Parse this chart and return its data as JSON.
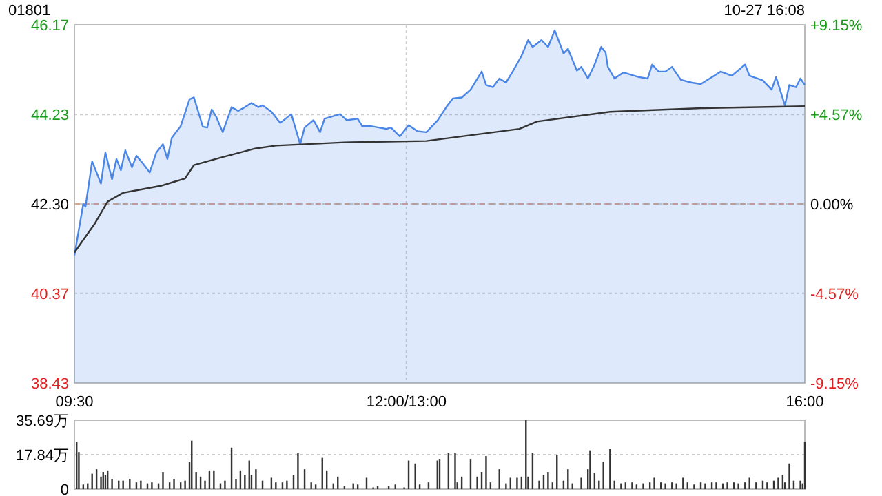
{
  "chart_data": [
    {
      "type": "line",
      "title": "01801",
      "subtitle": "10-27 16:08",
      "categories": [
        "09:30",
        null,
        null,
        null,
        null,
        null,
        null,
        null,
        null,
        null,
        null,
        null,
        null,
        null,
        null,
        null,
        null,
        null,
        null,
        null,
        null,
        null,
        null,
        null,
        null,
        null,
        null,
        null,
        null,
        null,
        null,
        null,
        null,
        null,
        null,
        null,
        null,
        null,
        null,
        null,
        null,
        null,
        null,
        null,
        null,
        null,
        null,
        null,
        null,
        null,
        null,
        null,
        null,
        null,
        null,
        null,
        null,
        null,
        null,
        null,
        null,
        null,
        null,
        null,
        null,
        null,
        null,
        null,
        null,
        null,
        null,
        null,
        null,
        null,
        null,
        null,
        null,
        null,
        null,
        null,
        null,
        null,
        null,
        null,
        null,
        null,
        null,
        null,
        null,
        null,
        null,
        null,
        null,
        null,
        null,
        null,
        null,
        null,
        null,
        null,
        null,
        null,
        null,
        null,
        null,
        null,
        null,
        null,
        null,
        null,
        null,
        null,
        null,
        null,
        null,
        null,
        null,
        null,
        null,
        null,
        null,
        null,
        null,
        null,
        null,
        null,
        null,
        null,
        null,
        null,
        null,
        null,
        null,
        null,
        null,
        null,
        null,
        null,
        null,
        null,
        null,
        null,
        null,
        null,
        null,
        null,
        null,
        null,
        null,
        null,
        "12:00/13:00",
        null,
        null,
        null,
        null,
        null,
        null,
        null,
        null,
        null,
        null,
        null,
        null,
        null,
        null,
        null,
        null,
        null,
        null,
        null,
        null,
        null,
        null,
        null,
        null,
        null,
        null,
        null,
        null,
        null,
        null,
        null,
        null,
        null,
        null,
        null,
        null,
        null,
        null,
        null,
        null,
        null,
        null,
        null,
        null,
        null,
        null,
        null,
        null,
        null,
        null,
        null,
        null,
        null,
        null,
        null,
        null,
        null,
        null,
        null,
        null,
        null,
        null,
        null,
        null,
        null,
        null,
        null,
        null,
        null,
        null,
        null,
        null,
        null,
        null,
        null,
        null,
        null,
        null,
        null,
        null,
        null,
        null,
        null,
        null,
        null,
        null,
        null,
        null,
        null,
        null,
        null,
        null,
        null,
        null,
        null,
        null,
        null,
        null,
        null,
        null,
        null,
        null,
        null,
        null,
        null,
        null,
        null,
        null,
        null,
        null,
        null,
        null,
        null,
        null,
        null,
        null,
        null,
        null,
        null,
        null,
        null,
        null,
        null,
        null,
        null,
        null,
        null,
        null,
        null,
        null,
        null,
        null,
        null,
        null,
        null,
        null,
        null,
        null,
        null,
        null,
        null,
        null,
        null,
        null,
        null,
        null,
        null,
        null,
        null,
        null,
        null,
        null,
        null,
        null,
        null,
        null,
        null,
        null,
        null,
        null,
        null,
        null,
        null,
        null,
        null,
        null,
        null,
        null,
        null,
        null,
        null,
        null,
        null,
        null,
        null,
        null,
        null,
        null,
        null,
        "16:00"
      ],
      "ylim": [
        38.43,
        46.17
      ],
      "yticks": [
        38.43,
        40.37,
        {
          "value": 42.3,
          "label": "42.30"
        },
        44.23,
        46.17
      ],
      "y2lim": [
        -9.15,
        9.15
      ],
      "y2ticks": [
        {
          "value": -9.15,
          "label": "-9.15%"
        },
        {
          "value": -4.57,
          "label": "-4.57%"
        },
        {
          "value": 0,
          "label": "0.00%"
        },
        {
          "value": 4.57,
          "label": "+4.57%"
        },
        {
          "value": 9.15,
          "label": "+9.15%"
        }
      ],
      "grid": true,
      "ref_lines": [
        {
          "axis": "y",
          "value": 42.3,
          "color": "#e0a080",
          "line_style": "dashed"
        }
      ],
      "series": [
        {
          "type": "area",
          "color": "#4a86e8",
          "values": [
            41.19,
            null,
            null,
            null,
            42.3,
            42.24,
            null,
            null,
            43.22,
            null,
            null,
            null,
            42.74,
            null,
            43.41,
            null,
            null,
            42.83,
            null,
            43.27,
            null,
            43.03,
            null,
            43.46,
            null,
            null,
            43.09,
            null,
            43.34,
            null,
            null,
            43.17,
            null,
            null,
            42.98,
            null,
            null,
            43.41,
            null,
            null,
            43.59,
            null,
            43.27,
            null,
            43.73,
            null,
            null,
            null,
            43.98,
            null,
            null,
            null,
            44.56,
            null,
            44.6,
            null,
            null,
            null,
            43.97,
            null,
            43.95,
            null,
            44.34,
            null,
            44.19,
            null,
            null,
            43.85,
            null,
            null,
            null,
            44.39,
            null,
            null,
            44.31,
            null,
            null,
            44.39,
            null,
            null,
            44.48,
            null,
            null,
            44.39,
            null,
            44.43,
            null,
            null,
            null,
            44.29,
            null,
            null,
            null,
            44.05,
            null,
            null,
            null,
            null,
            44.24,
            null,
            null,
            null,
            43.59,
            null,
            43.95,
            null,
            null,
            null,
            44.11,
            null,
            null,
            43.85,
            null,
            44.14,
            null,
            null,
            null,
            null,
            null,
            null,
            44.24,
            null,
            null,
            44.11,
            null,
            null,
            null,
            null,
            44.14,
            null,
            43.98,
            null,
            null,
            null,
            43.98,
            null,
            null,
            null,
            null,
            null,
            null,
            43.92,
            null,
            43.95,
            null,
            null,
            null,
            43.76,
            null,
            null,
            null,
            44.0,
            null,
            null,
            null,
            43.87,
            null,
            null,
            null,
            43.85,
            null,
            null,
            null,
            null,
            44.1,
            null,
            null,
            null,
            44.39,
            null,
            null,
            44.58,
            null,
            null,
            null,
            44.6,
            null,
            null,
            null,
            44.77,
            null,
            null,
            null,
            null,
            45.16,
            null,
            44.87,
            null,
            null,
            44.82,
            null,
            null,
            45.01,
            null,
            null,
            44.92,
            null,
            null,
            45.16,
            null,
            null,
            null,
            45.5,
            null,
            null,
            45.84,
            null,
            45.69,
            null,
            null,
            null,
            45.84,
            null,
            null,
            45.69,
            null,
            null,
            46.05,
            null,
            null,
            null,
            45.55,
            null,
            45.65,
            null,
            null,
            null,
            45.18,
            null,
            45.26,
            null,
            null,
            45.01,
            null,
            null,
            45.31,
            null,
            null,
            45.69,
            null,
            45.57,
            45.26,
            null,
            null,
            45.01,
            null,
            null,
            null,
            45.14,
            null,
            null,
            null,
            null,
            null,
            null,
            45.04,
            null,
            null,
            null,
            45.01,
            null,
            45.31,
            null,
            null,
            45.16,
            null,
            null,
            45.16,
            null,
            null,
            45.26,
            null,
            null,
            null,
            44.98,
            null,
            null,
            null,
            null,
            44.92,
            null,
            null,
            null,
            44.89,
            null,
            null,
            null,
            null,
            null,
            45.07,
            null,
            null,
            45.16,
            null,
            null,
            null,
            null,
            45.07,
            null,
            null,
            null,
            null,
            null,
            45.31,
            null,
            45.07,
            null,
            null,
            null,
            null,
            null,
            44.97,
            null,
            null,
            null,
            44.77,
            null,
            45.04,
            null,
            null,
            null,
            44.43,
            null,
            44.87,
            null,
            null,
            44.82,
            null,
            45.01,
            null,
            44.87
          ]
        },
        {
          "type": "line",
          "color": "#333333",
          "values": [
            41.25,
            null,
            null,
            null,
            null,
            null,
            null,
            null,
            null,
            41.86,
            null,
            null,
            null,
            null,
            null,
            42.35,
            null,
            null,
            null,
            null,
            null,
            null,
            42.54,
            null,
            null,
            null,
            null,
            null,
            null,
            null,
            null,
            42.62,
            null,
            null,
            null,
            null,
            null,
            null,
            null,
            42.69,
            null,
            null,
            null,
            null,
            null,
            null,
            null,
            null,
            null,
            null,
            42.85,
            null,
            null,
            null,
            43.14,
            null,
            null,
            null,
            null,
            null,
            null,
            null,
            null,
            null,
            null,
            null,
            43.3,
            null,
            null,
            null,
            null,
            null,
            null,
            null,
            null,
            null,
            null,
            null,
            null,
            null,
            null,
            43.49,
            null,
            null,
            null,
            null,
            null,
            null,
            null,
            null,
            null,
            43.56,
            null,
            null,
            null,
            null,
            null,
            null,
            null,
            null,
            null,
            null,
            null,
            null,
            null,
            null,
            null,
            null,
            null,
            null,
            null,
            null,
            null,
            null,
            null,
            null,
            null,
            null,
            null,
            null,
            null,
            null,
            43.63,
            null,
            null,
            null,
            null,
            null,
            null,
            null,
            null,
            null,
            null,
            null,
            null,
            null,
            null,
            null,
            null,
            null,
            null,
            null,
            null,
            null,
            null,
            null,
            null,
            null,
            null,
            null,
            null,
            null,
            null,
            null,
            null,
            null,
            null,
            null,
            null,
            43.66,
            null,
            null,
            null,
            null,
            null,
            null,
            null,
            null,
            null,
            null,
            null,
            null,
            null,
            null,
            null,
            null,
            null,
            null,
            null,
            null,
            43.79,
            null,
            null,
            null,
            null,
            null,
            null,
            null,
            null,
            null,
            null,
            null,
            null,
            null,
            null,
            null,
            null,
            null,
            null,
            null,
            null,
            43.92,
            null,
            null,
            null,
            null,
            null,
            null,
            null,
            44.08,
            null,
            null,
            null,
            null,
            null,
            null,
            null,
            null,
            null,
            null,
            null,
            null,
            null,
            null,
            null,
            null,
            null,
            null,
            null,
            null,
            null,
            null,
            null,
            null,
            null,
            null,
            null,
            null,
            null,
            null,
            null,
            null,
            44.29,
            null,
            null,
            null,
            null,
            null,
            null,
            null,
            null,
            null,
            null,
            null,
            null,
            null,
            null,
            null,
            null,
            null,
            null,
            null,
            null,
            null,
            null,
            null,
            null,
            null,
            null,
            null,
            null,
            null,
            null,
            null,
            null,
            null,
            null,
            null,
            null,
            null,
            null,
            null,
            null,
            null,
            44.37,
            null,
            null,
            null,
            null,
            null,
            null,
            null,
            null,
            null,
            null,
            null,
            null,
            null,
            null,
            null,
            null,
            null,
            null,
            null,
            null,
            null,
            null,
            null,
            null,
            null,
            null,
            null,
            null,
            null,
            null,
            null,
            null,
            null,
            null,
            null,
            null,
            null,
            null,
            null,
            null,
            null,
            null,
            null,
            null,
            null,
            44.41
          ]
        }
      ]
    },
    {
      "type": "bar",
      "color": "#333333",
      "tick_labels": "y",
      "grid": "y",
      "categories": [
        null,
        null,
        null,
        null,
        null,
        null,
        null,
        null,
        null,
        null,
        null,
        null,
        null,
        null,
        null,
        null,
        null,
        null,
        null,
        null,
        null,
        null,
        null,
        null,
        null,
        null,
        null,
        null,
        null,
        null,
        null,
        null,
        null,
        null,
        null,
        null,
        null,
        null,
        null,
        null,
        null,
        null,
        null,
        null,
        null,
        null,
        null,
        null,
        null,
        null,
        null,
        null,
        null,
        null,
        null,
        null,
        null,
        null,
        null,
        null,
        null,
        null,
        null,
        null,
        null,
        null,
        null,
        null,
        null,
        null,
        null,
        null,
        null,
        null,
        null,
        null,
        null,
        null,
        null,
        null,
        null,
        null,
        null,
        null,
        null,
        null,
        null,
        null,
        null,
        null,
        null,
        null,
        null,
        null,
        null,
        null,
        null,
        null,
        null,
        null,
        null,
        null,
        null,
        null,
        null,
        null,
        null,
        null,
        null,
        null,
        null,
        null,
        null,
        null,
        null,
        null,
        null,
        null,
        null,
        null,
        null,
        null,
        null,
        null,
        null,
        null,
        null,
        null,
        null,
        null,
        null,
        null,
        null,
        null,
        null,
        null,
        null,
        null,
        null,
        null,
        null,
        null,
        null,
        null,
        null,
        null,
        null,
        null,
        null,
        null,
        null,
        null,
        null,
        null,
        null,
        null,
        null,
        null,
        null,
        null,
        null,
        null,
        null,
        null,
        null,
        null,
        null,
        null,
        null,
        null,
        null,
        null,
        null,
        null,
        null,
        null,
        null,
        null,
        null,
        null,
        null,
        null,
        null,
        null,
        null,
        null,
        null,
        null,
        null,
        null,
        null,
        null,
        null,
        null,
        null,
        null,
        null,
        null,
        null,
        null,
        null,
        null,
        null,
        null,
        null,
        null,
        null,
        null,
        null,
        null,
        null,
        null,
        null,
        null,
        null,
        null,
        null,
        null,
        null,
        null,
        null,
        null,
        null,
        null,
        null,
        null,
        null,
        null,
        null,
        null,
        null,
        null,
        null,
        null,
        null,
        null,
        null,
        null,
        null,
        null,
        null,
        null,
        null,
        null,
        null,
        null,
        null,
        null,
        null,
        null,
        null,
        null,
        null,
        null,
        null,
        null,
        null,
        null,
        null,
        null,
        null,
        null,
        null,
        null,
        null,
        null,
        null,
        null,
        null,
        null,
        null,
        null,
        null,
        null,
        null,
        null,
        null,
        null,
        null,
        null,
        null,
        null,
        null,
        null,
        null,
        null,
        null,
        null,
        null,
        null,
        null,
        null,
        null,
        null,
        null,
        null,
        null,
        null,
        null,
        null,
        null,
        null,
        null,
        null,
        null,
        null,
        null,
        null,
        null,
        null,
        null,
        null,
        null,
        null,
        null,
        null,
        null,
        null,
        null,
        null,
        null,
        null,
        null,
        null,
        null,
        null,
        null,
        null,
        null,
        null,
        null
      ],
      "ylim": [
        0,
        35.69
      ],
      "yticks": [
        0,
        {
          "value": 17.84,
          "label": "17.84万"
        },
        {
          "value": 35.69,
          "label": "35.69万"
        }
      ],
      "values": [
        null,
        24.5,
        19.2,
        null,
        2.4,
        null,
        3.0,
        null,
        8.0,
        null,
        10.3,
        null,
        6.5,
        8.9,
        7.4,
        9.7,
        null,
        5.3,
        null,
        null,
        4.4,
        null,
        4.4,
        null,
        null,
        5.3,
        null,
        null,
        3.5,
        null,
        4.4,
        null,
        null,
        3.0,
        null,
        3.5,
        null,
        null,
        3.0,
        null,
        8.9,
        null,
        null,
        3.5,
        null,
        5.3,
        null,
        null,
        3.5,
        null,
        4.4,
        null,
        14.2,
        25.1,
        null,
        8.9,
        null,
        6.5,
        null,
        4.4,
        null,
        9.7,
        null,
        9.7,
        null,
        null,
        3.0,
        null,
        4.4,
        null,
        null,
        21.5,
        null,
        5.3,
        null,
        9.7,
        null,
        7.4,
        null,
        14.8,
        7.4,
        null,
        10.3,
        null,
        null,
        4.4,
        null,
        null,
        null,
        5.9,
        null,
        3.5,
        null,
        null,
        3.5,
        null,
        4.4,
        null,
        null,
        7.4,
        null,
        18.6,
        null,
        null,
        10.3,
        null,
        null,
        3.5,
        null,
        2.4,
        null,
        null,
        16.2,
        null,
        9.7,
        null,
        null,
        3.0,
        null,
        6.5,
        null,
        null,
        1.5,
        null,
        null,
        null,
        3.0,
        null,
        2.4,
        null,
        null,
        null,
        5.9,
        null,
        null,
        0.9,
        null,
        1.5,
        null,
        null,
        null,
        null,
        1.5,
        null,
        null,
        2.4,
        null,
        null,
        null,
        0.9,
        null,
        14.8,
        null,
        null,
        13.3,
        null,
        2.4,
        null,
        null,
        null,
        3.5,
        null,
        null,
        null,
        14.8,
        15.3,
        null,
        null,
        null,
        18.6,
        null,
        null,
        18.6,
        3.5,
        null,
        6.5,
        null,
        null,
        null,
        15.3,
        null,
        null,
        6.5,
        null,
        8.9,
        null,
        17.1,
        null,
        3.5,
        null,
        null,
        null,
        10.3,
        null,
        null,
        3.0,
        null,
        5.9,
        null,
        null,
        5.9,
        null,
        6.5,
        null,
        35.69,
        6.5,
        null,
        18.6,
        null,
        null,
        4.4,
        null,
        7.4,
        null,
        8.9,
        null,
        3.5,
        null,
        17.7,
        null,
        null,
        4.4,
        null,
        10.3,
        null,
        3.0,
        null,
        null,
        null,
        5.9,
        null,
        null,
        10.3,
        20.1,
        null,
        8.3,
        null,
        4.4,
        null,
        14.2,
        null,
        null,
        20.7,
        null,
        4.4,
        null,
        null,
        3.0,
        null,
        3.5,
        null,
        null,
        3.5,
        null,
        2.4,
        null,
        null,
        3.0,
        null,
        null,
        3.5,
        null,
        5.9,
        null,
        null,
        3.5,
        null,
        3.0,
        null,
        null,
        3.5,
        null,
        3.0,
        null,
        null,
        5.9,
        null,
        3.5,
        null,
        null,
        2.4,
        null,
        null,
        3.5,
        null,
        3.0,
        null,
        null,
        3.5,
        null,
        3.5,
        null,
        null,
        3.0,
        null,
        3.5,
        null,
        null,
        3.5,
        null,
        3.0,
        null,
        null,
        3.5,
        null,
        5.9,
        null,
        null,
        3.5,
        null,
        null,
        4.4,
        null,
        3.5,
        null,
        null,
        4.4,
        null,
        5.9,
        null,
        7.4,
        3.5,
        null,
        13.3,
        null,
        4.4,
        null,
        null,
        4.4,
        3.0,
        24.5
      ]
    }
  ]
}
